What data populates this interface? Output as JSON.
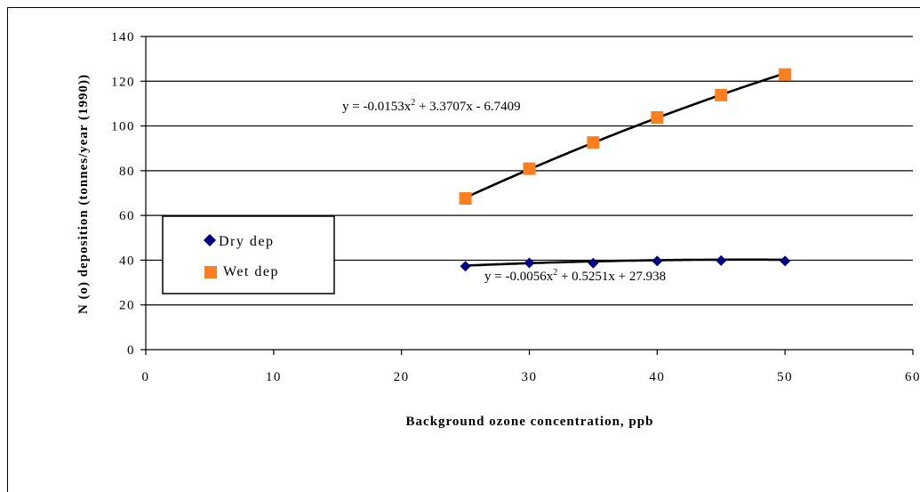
{
  "chart_data": {
    "type": "scatter",
    "xlabel": "Background ozone concentration, ppb",
    "ylabel": "N (o) deposition (tonnes/year (1990))",
    "xlim": [
      0,
      60
    ],
    "ylim": [
      0,
      140
    ],
    "x_ticks": [
      "0",
      "10",
      "20",
      "30",
      "40",
      "50",
      "60"
    ],
    "y_ticks": [
      "0",
      "20",
      "40",
      "60",
      "80",
      "100",
      "120",
      "140"
    ],
    "grid": "horizontal",
    "legend_placement": "left",
    "series": [
      {
        "name": "Dry dep",
        "marker": "diamond",
        "color": "#000080",
        "x": [
          25,
          30,
          35,
          40,
          45,
          50
        ],
        "y": [
          37.3,
          38.8,
          38.7,
          39.6,
          39.8,
          39.6
        ],
        "trendline": {
          "type": "polynomial",
          "a": -0.0056,
          "b": 0.5251,
          "c": 27.938,
          "equation_text_pre": "y = -0.0056x",
          "equation_text_post": " + 0.5251x + 27.938"
        }
      },
      {
        "name": "Wet dep",
        "marker": "square",
        "color": "#ff7f1e",
        "x": [
          25,
          30,
          35,
          40,
          45,
          50
        ],
        "y": [
          67.6,
          80.9,
          92.6,
          103.8,
          113.8,
          123.0
        ],
        "trendline": {
          "type": "polynomial",
          "a": -0.0153,
          "b": 3.3707,
          "c": -6.7409,
          "equation_text_pre": "y = -0.0153x",
          "equation_text_post": " + 3.3707x - 6.7409"
        }
      }
    ],
    "superscript": "2"
  }
}
